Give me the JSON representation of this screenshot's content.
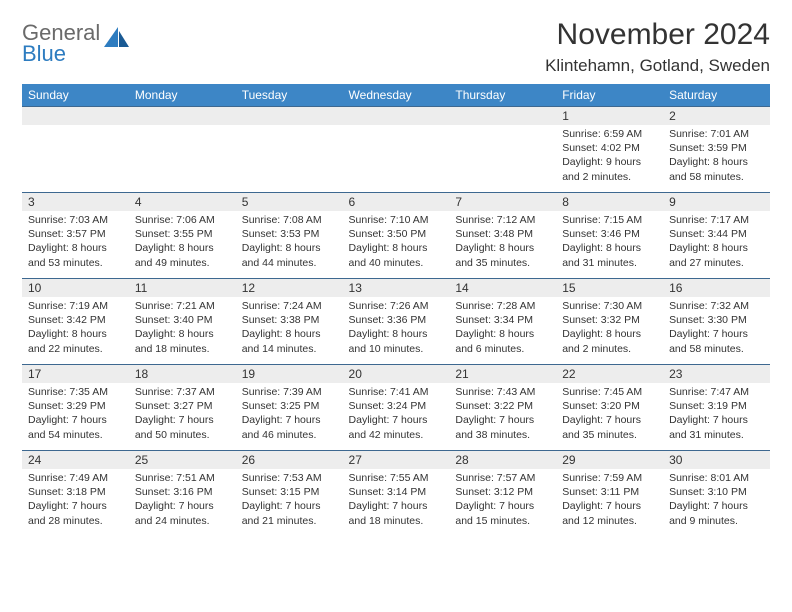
{
  "logo": {
    "text1": "General",
    "text2": "Blue"
  },
  "title": "November 2024",
  "location": "Klintehamn, Gotland, Sweden",
  "colors": {
    "header_bg": "#3d86c6",
    "header_fg": "#ffffff",
    "daynum_bg": "#ededed",
    "border": "#3d6890",
    "logo_gray": "#6a6a6a",
    "logo_blue": "#2d7cc0",
    "text": "#333333"
  },
  "weekdays": [
    "Sunday",
    "Monday",
    "Tuesday",
    "Wednesday",
    "Thursday",
    "Friday",
    "Saturday"
  ],
  "weeks": [
    [
      {
        "empty": true
      },
      {
        "empty": true
      },
      {
        "empty": true
      },
      {
        "empty": true
      },
      {
        "empty": true
      },
      {
        "day": "1",
        "sunrise": "Sunrise: 6:59 AM",
        "sunset": "Sunset: 4:02 PM",
        "daylight": "Daylight: 9 hours and 2 minutes."
      },
      {
        "day": "2",
        "sunrise": "Sunrise: 7:01 AM",
        "sunset": "Sunset: 3:59 PM",
        "daylight": "Daylight: 8 hours and 58 minutes."
      }
    ],
    [
      {
        "day": "3",
        "sunrise": "Sunrise: 7:03 AM",
        "sunset": "Sunset: 3:57 PM",
        "daylight": "Daylight: 8 hours and 53 minutes."
      },
      {
        "day": "4",
        "sunrise": "Sunrise: 7:06 AM",
        "sunset": "Sunset: 3:55 PM",
        "daylight": "Daylight: 8 hours and 49 minutes."
      },
      {
        "day": "5",
        "sunrise": "Sunrise: 7:08 AM",
        "sunset": "Sunset: 3:53 PM",
        "daylight": "Daylight: 8 hours and 44 minutes."
      },
      {
        "day": "6",
        "sunrise": "Sunrise: 7:10 AM",
        "sunset": "Sunset: 3:50 PM",
        "daylight": "Daylight: 8 hours and 40 minutes."
      },
      {
        "day": "7",
        "sunrise": "Sunrise: 7:12 AM",
        "sunset": "Sunset: 3:48 PM",
        "daylight": "Daylight: 8 hours and 35 minutes."
      },
      {
        "day": "8",
        "sunrise": "Sunrise: 7:15 AM",
        "sunset": "Sunset: 3:46 PM",
        "daylight": "Daylight: 8 hours and 31 minutes."
      },
      {
        "day": "9",
        "sunrise": "Sunrise: 7:17 AM",
        "sunset": "Sunset: 3:44 PM",
        "daylight": "Daylight: 8 hours and 27 minutes."
      }
    ],
    [
      {
        "day": "10",
        "sunrise": "Sunrise: 7:19 AM",
        "sunset": "Sunset: 3:42 PM",
        "daylight": "Daylight: 8 hours and 22 minutes."
      },
      {
        "day": "11",
        "sunrise": "Sunrise: 7:21 AM",
        "sunset": "Sunset: 3:40 PM",
        "daylight": "Daylight: 8 hours and 18 minutes."
      },
      {
        "day": "12",
        "sunrise": "Sunrise: 7:24 AM",
        "sunset": "Sunset: 3:38 PM",
        "daylight": "Daylight: 8 hours and 14 minutes."
      },
      {
        "day": "13",
        "sunrise": "Sunrise: 7:26 AM",
        "sunset": "Sunset: 3:36 PM",
        "daylight": "Daylight: 8 hours and 10 minutes."
      },
      {
        "day": "14",
        "sunrise": "Sunrise: 7:28 AM",
        "sunset": "Sunset: 3:34 PM",
        "daylight": "Daylight: 8 hours and 6 minutes."
      },
      {
        "day": "15",
        "sunrise": "Sunrise: 7:30 AM",
        "sunset": "Sunset: 3:32 PM",
        "daylight": "Daylight: 8 hours and 2 minutes."
      },
      {
        "day": "16",
        "sunrise": "Sunrise: 7:32 AM",
        "sunset": "Sunset: 3:30 PM",
        "daylight": "Daylight: 7 hours and 58 minutes."
      }
    ],
    [
      {
        "day": "17",
        "sunrise": "Sunrise: 7:35 AM",
        "sunset": "Sunset: 3:29 PM",
        "daylight": "Daylight: 7 hours and 54 minutes."
      },
      {
        "day": "18",
        "sunrise": "Sunrise: 7:37 AM",
        "sunset": "Sunset: 3:27 PM",
        "daylight": "Daylight: 7 hours and 50 minutes."
      },
      {
        "day": "19",
        "sunrise": "Sunrise: 7:39 AM",
        "sunset": "Sunset: 3:25 PM",
        "daylight": "Daylight: 7 hours and 46 minutes."
      },
      {
        "day": "20",
        "sunrise": "Sunrise: 7:41 AM",
        "sunset": "Sunset: 3:24 PM",
        "daylight": "Daylight: 7 hours and 42 minutes."
      },
      {
        "day": "21",
        "sunrise": "Sunrise: 7:43 AM",
        "sunset": "Sunset: 3:22 PM",
        "daylight": "Daylight: 7 hours and 38 minutes."
      },
      {
        "day": "22",
        "sunrise": "Sunrise: 7:45 AM",
        "sunset": "Sunset: 3:20 PM",
        "daylight": "Daylight: 7 hours and 35 minutes."
      },
      {
        "day": "23",
        "sunrise": "Sunrise: 7:47 AM",
        "sunset": "Sunset: 3:19 PM",
        "daylight": "Daylight: 7 hours and 31 minutes."
      }
    ],
    [
      {
        "day": "24",
        "sunrise": "Sunrise: 7:49 AM",
        "sunset": "Sunset: 3:18 PM",
        "daylight": "Daylight: 7 hours and 28 minutes."
      },
      {
        "day": "25",
        "sunrise": "Sunrise: 7:51 AM",
        "sunset": "Sunset: 3:16 PM",
        "daylight": "Daylight: 7 hours and 24 minutes."
      },
      {
        "day": "26",
        "sunrise": "Sunrise: 7:53 AM",
        "sunset": "Sunset: 3:15 PM",
        "daylight": "Daylight: 7 hours and 21 minutes."
      },
      {
        "day": "27",
        "sunrise": "Sunrise: 7:55 AM",
        "sunset": "Sunset: 3:14 PM",
        "daylight": "Daylight: 7 hours and 18 minutes."
      },
      {
        "day": "28",
        "sunrise": "Sunrise: 7:57 AM",
        "sunset": "Sunset: 3:12 PM",
        "daylight": "Daylight: 7 hours and 15 minutes."
      },
      {
        "day": "29",
        "sunrise": "Sunrise: 7:59 AM",
        "sunset": "Sunset: 3:11 PM",
        "daylight": "Daylight: 7 hours and 12 minutes."
      },
      {
        "day": "30",
        "sunrise": "Sunrise: 8:01 AM",
        "sunset": "Sunset: 3:10 PM",
        "daylight": "Daylight: 7 hours and 9 minutes."
      }
    ]
  ]
}
